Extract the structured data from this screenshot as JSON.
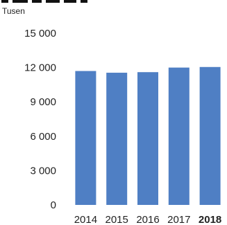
{
  "chart_data": {
    "type": "bar",
    "unit_label": "Tusen",
    "categories": [
      "2014",
      "2015",
      "2016",
      "2017",
      "2018"
    ],
    "highlighted_category": "2018",
    "values": [
      11700,
      11550,
      11600,
      12000,
      12050
    ],
    "ylim": [
      0,
      15000
    ],
    "yticks": [
      "15 000",
      "12 000",
      "9 000",
      "6 000",
      "3 000",
      "0"
    ],
    "ytick_values": [
      15000,
      12000,
      9000,
      6000,
      3000,
      0
    ],
    "grid": false,
    "bar_color": "#4f7fc4"
  }
}
